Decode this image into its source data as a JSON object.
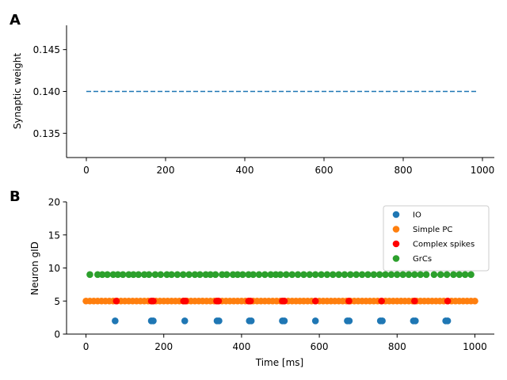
{
  "chart_data": [
    {
      "type": "line",
      "panel_label": "A",
      "title": "",
      "xlabel": "",
      "ylabel": "Synaptic weight",
      "xlim": [
        -50,
        1030
      ],
      "ylim": [
        0.1321,
        0.1479
      ],
      "xticks": [
        0,
        200,
        400,
        600,
        800,
        1000
      ],
      "yticks": [
        0.135,
        0.14,
        0.145
      ],
      "ytick_labels": [
        "0.135",
        "0.140",
        "0.145"
      ],
      "grid": false,
      "series": [
        {
          "name": "Synaptic weight",
          "style": "dashed",
          "color": "#1f77b4",
          "x": [
            0,
            985
          ],
          "y": [
            0.14,
            0.14
          ]
        }
      ]
    },
    {
      "type": "scatter",
      "panel_label": "B",
      "title": "",
      "xlabel": "Time [ms]",
      "ylabel": "Neuron gID",
      "xlim": [
        -50,
        1050
      ],
      "ylim": [
        0,
        20
      ],
      "xticks": [
        0,
        200,
        400,
        600,
        800,
        1000
      ],
      "yticks": [
        0,
        5,
        10,
        15,
        20
      ],
      "grid": false,
      "legend_position": "top-right",
      "series": [
        {
          "name": "IO",
          "color": "#1f77b4",
          "x": [
            75,
            168,
            173,
            254,
            337,
            342,
            420,
            425,
            505,
            510,
            590,
            672,
            677,
            757,
            762,
            842,
            847,
            925,
            930
          ],
          "y": [
            2,
            2,
            2,
            2,
            2,
            2,
            2,
            2,
            2,
            2,
            2,
            2,
            2,
            2,
            2,
            2,
            2,
            2,
            2
          ]
        },
        {
          "name": "Simple PC",
          "color": "#ff7f0e",
          "x": [
            0,
            10,
            20,
            30,
            40,
            50,
            60,
            70,
            80,
            90,
            100,
            110,
            120,
            130,
            140,
            150,
            160,
            170,
            180,
            190,
            200,
            210,
            220,
            230,
            240,
            250,
            260,
            270,
            280,
            290,
            300,
            310,
            320,
            330,
            340,
            350,
            360,
            370,
            380,
            390,
            400,
            410,
            420,
            430,
            440,
            450,
            460,
            470,
            480,
            490,
            500,
            510,
            520,
            530,
            540,
            550,
            560,
            570,
            580,
            590,
            600,
            610,
            620,
            630,
            640,
            650,
            660,
            670,
            680,
            690,
            700,
            710,
            720,
            730,
            740,
            750,
            760,
            770,
            780,
            790,
            800,
            810,
            820,
            830,
            840,
            850,
            860,
            870,
            880,
            890,
            900,
            910,
            920,
            930,
            940,
            950,
            960,
            970,
            980,
            990,
            1000
          ],
          "y": [
            5,
            5,
            5,
            5,
            5,
            5,
            5,
            5,
            5,
            5,
            5,
            5,
            5,
            5,
            5,
            5,
            5,
            5,
            5,
            5,
            5,
            5,
            5,
            5,
            5,
            5,
            5,
            5,
            5,
            5,
            5,
            5,
            5,
            5,
            5,
            5,
            5,
            5,
            5,
            5,
            5,
            5,
            5,
            5,
            5,
            5,
            5,
            5,
            5,
            5,
            5,
            5,
            5,
            5,
            5,
            5,
            5,
            5,
            5,
            5,
            5,
            5,
            5,
            5,
            5,
            5,
            5,
            5,
            5,
            5,
            5,
            5,
            5,
            5,
            5,
            5,
            5,
            5,
            5,
            5,
            5,
            5,
            5,
            5,
            5,
            5,
            5,
            5,
            5,
            5,
            5,
            5,
            5,
            5,
            5,
            5,
            5,
            5,
            5,
            5,
            5
          ]
        },
        {
          "name": "Complex spikes",
          "color": "#ff0000",
          "x": [
            78,
            168,
            173,
            251,
            256,
            336,
            341,
            418,
            423,
            505,
            510,
            590,
            676,
            760,
            845,
            930
          ],
          "y": [
            5,
            5,
            5,
            5,
            5,
            5,
            5,
            5,
            5,
            5,
            5,
            5,
            5,
            5,
            5,
            5
          ]
        },
        {
          "name": "GrCs",
          "color": "#2ca02c",
          "x": [
            10,
            30,
            42,
            55,
            70,
            82,
            95,
            110,
            122,
            135,
            150,
            162,
            178,
            192,
            208,
            220,
            235,
            250,
            265,
            280,
            293,
            308,
            320,
            333,
            350,
            362,
            378,
            390,
            403,
            418,
            430,
            445,
            460,
            475,
            488,
            500,
            515,
            530,
            545,
            560,
            575,
            590,
            605,
            620,
            635,
            650,
            665,
            680,
            695,
            710,
            725,
            740,
            755,
            770,
            785,
            800,
            815,
            830,
            845,
            860,
            875,
            895,
            912,
            928,
            945,
            960,
            975,
            990
          ],
          "y": [
            9,
            9,
            9,
            9,
            9,
            9,
            9,
            9,
            9,
            9,
            9,
            9,
            9,
            9,
            9,
            9,
            9,
            9,
            9,
            9,
            9,
            9,
            9,
            9,
            9,
            9,
            9,
            9,
            9,
            9,
            9,
            9,
            9,
            9,
            9,
            9,
            9,
            9,
            9,
            9,
            9,
            9,
            9,
            9,
            9,
            9,
            9,
            9,
            9,
            9,
            9,
            9,
            9,
            9,
            9,
            9,
            9,
            9,
            9,
            9,
            9,
            9,
            9,
            9,
            9,
            9,
            9,
            9
          ]
        }
      ]
    }
  ]
}
